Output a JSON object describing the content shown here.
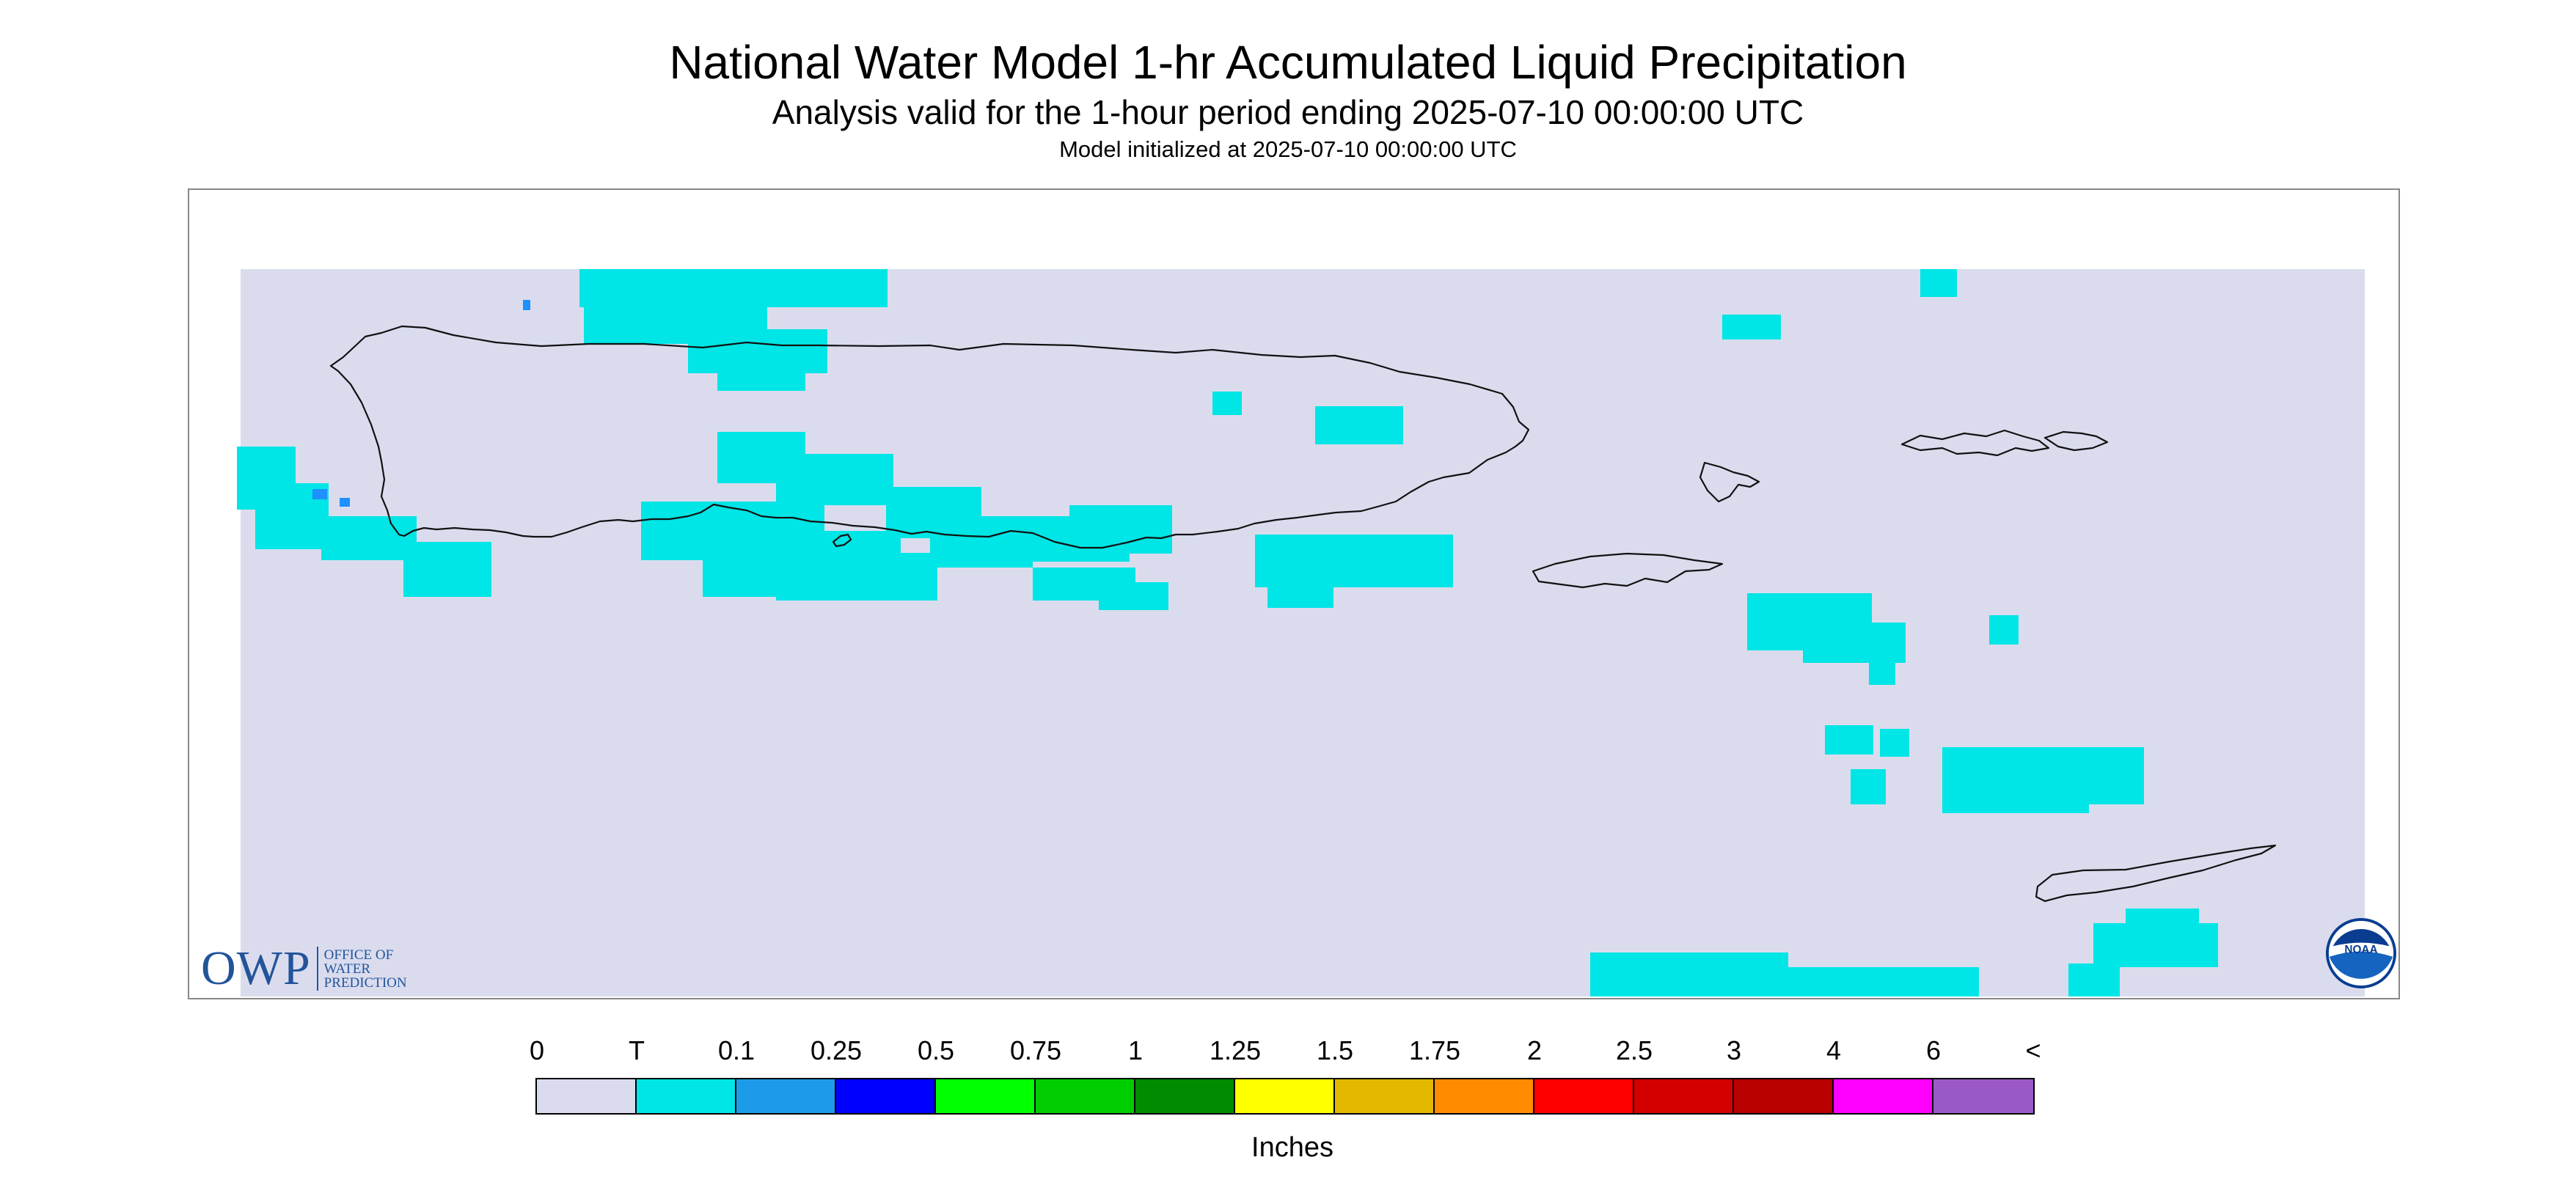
{
  "header": {
    "title": "National Water Model 1-hr Accumulated Liquid Precipitation",
    "subtitle": "Analysis valid for the 1-hour period ending 2025-07-10 00:00:00 UTC",
    "init_note": "Model initialized at 2025-07-10 00:00:00 UTC"
  },
  "map": {
    "region": "Puerto Rico and U.S. Virgin Islands",
    "background_color": "#dadcee",
    "precip_color_trace": "#00e5e5",
    "precip_color_light": "#1e90ff",
    "precip_areas": [
      {
        "class": "T"
      },
      {
        "class": "T"
      },
      {
        "class": "T"
      },
      {
        "class": "T"
      },
      {
        "class": "T"
      },
      {
        "class": "T"
      },
      {
        "class": "T"
      },
      {
        "class": "T"
      },
      {
        "class": "T"
      },
      {
        "class": "T"
      },
      {
        "class": "T"
      },
      {
        "class": "T"
      },
      {
        "class": "T"
      },
      {
        "class": "T"
      },
      {
        "class": "T"
      },
      {
        "class": "T"
      },
      {
        "class": "T"
      },
      {
        "class": "T"
      },
      {
        "class": "T"
      },
      {
        "class": "T"
      },
      {
        "class": "T"
      },
      {
        "class": "T"
      },
      {
        "class": "0.1"
      }
    ]
  },
  "logos": {
    "owp_mark": "OWP",
    "owp_text": "Office of Water Prediction",
    "noaa_text": "NOAA"
  },
  "legend": {
    "labels": [
      "0",
      "T",
      "0.1",
      "0.25",
      "0.5",
      "0.75",
      "1",
      "1.25",
      "1.5",
      "1.75",
      "2",
      "2.5",
      "3",
      "4",
      "6",
      "<"
    ],
    "colors": [
      "#dadcee",
      "#00e5e5",
      "#1e9be8",
      "#0000ff",
      "#00ff00",
      "#00cd00",
      "#008b00",
      "#ffff00",
      "#e5b800",
      "#ff8c00",
      "#ff0000",
      "#d40000",
      "#b80000",
      "#ff00ff",
      "#9b59c8"
    ],
    "units": "Inches"
  }
}
